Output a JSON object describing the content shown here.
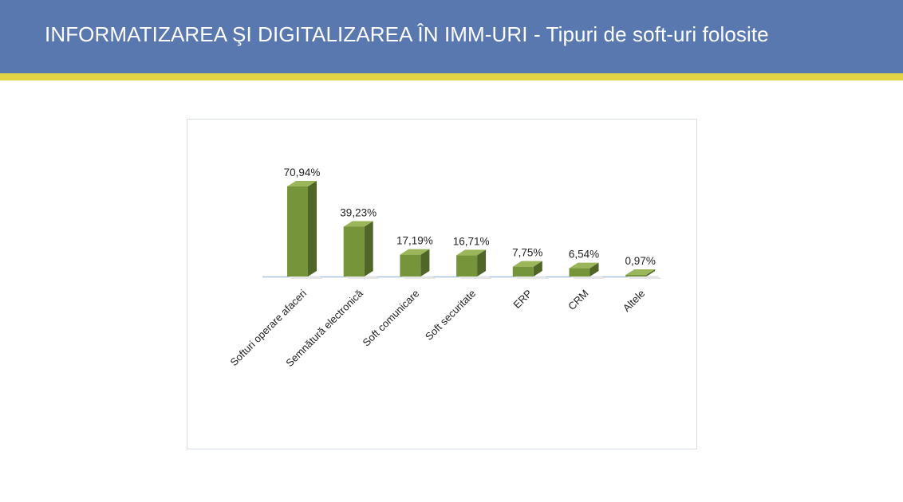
{
  "slide": {
    "title_main": "INFORMATIZAREA ŞI DIGITALIZAREA ÎN IMM-URI",
    "title_sub": " - Tipuri de soft-uri folosite"
  },
  "colors": {
    "header": "#5a78b0",
    "stripe": "#e3d445",
    "bar_front": "#76943a",
    "bar_side": "#4f6627",
    "bar_top": "#9bb55a",
    "axis": "#a9c4de"
  },
  "chart_data": {
    "type": "bar",
    "categories": [
      "Softuri operare afaceri",
      "Semnătură electronică",
      "Soft comunicare",
      "Soft securitate",
      "ERP",
      "CRM",
      "Altele"
    ],
    "values": [
      70.94,
      39.23,
      17.19,
      16.71,
      7.75,
      6.54,
      0.97
    ],
    "value_labels": [
      "70,94%",
      "39,23%",
      "17,19%",
      "16,71%",
      "7,75%",
      "6,54%",
      "0,97%"
    ],
    "unit": "%",
    "ylim": [
      0,
      75
    ],
    "grid": false,
    "legend": "none",
    "style": "3d-column"
  }
}
